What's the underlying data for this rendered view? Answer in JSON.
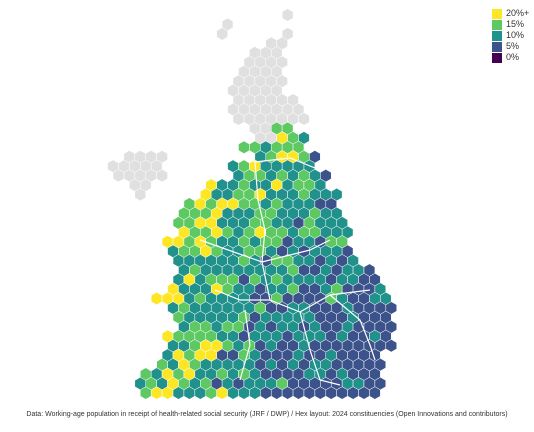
{
  "legend": {
    "items": [
      {
        "label": "20%+",
        "color": "#fde725"
      },
      {
        "label": "15%",
        "color": "#5ec962"
      },
      {
        "label": "10%",
        "color": "#21918c"
      },
      {
        "label": "5%",
        "color": "#3b528b"
      },
      {
        "label": "0%",
        "color": "#440154"
      }
    ]
  },
  "no_data_color": "#e0e0e0",
  "caption": "Data: Working-age population in receipt of health-related social security (JRF / DWP) / Hex layout: 2024 constituencies (Open Innovations and contributors)"
}
